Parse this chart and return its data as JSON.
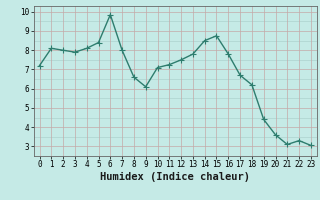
{
  "x": [
    0,
    1,
    2,
    3,
    4,
    5,
    6,
    7,
    8,
    9,
    10,
    11,
    12,
    13,
    14,
    15,
    16,
    17,
    18,
    19,
    20,
    21,
    22,
    23
  ],
  "y": [
    7.2,
    8.1,
    8.0,
    7.9,
    8.1,
    8.4,
    9.85,
    8.0,
    6.6,
    6.1,
    7.1,
    7.25,
    7.5,
    7.8,
    8.5,
    8.75,
    7.8,
    6.7,
    6.2,
    4.4,
    3.6,
    3.1,
    3.3,
    3.05
  ],
  "line_color": "#2e7d6e",
  "marker_color": "#2e7d6e",
  "bg_color": "#c5eae6",
  "grid_color_h": "#c4a8a8",
  "grid_color_v": "#c4a8a8",
  "teal_grid": "#a8ccc8",
  "xlabel": "Humidex (Indice chaleur)",
  "ylim": [
    2.5,
    10.3
  ],
  "xlim": [
    -0.5,
    23.5
  ],
  "yticks": [
    3,
    4,
    5,
    6,
    7,
    8,
    9,
    10
  ],
  "xticks": [
    0,
    1,
    2,
    3,
    4,
    5,
    6,
    7,
    8,
    9,
    10,
    11,
    12,
    13,
    14,
    15,
    16,
    17,
    18,
    19,
    20,
    21,
    22,
    23
  ],
  "tick_fontsize": 5.5,
  "xlabel_fontsize": 7.5,
  "line_width": 1.0,
  "marker_size": 2.5
}
